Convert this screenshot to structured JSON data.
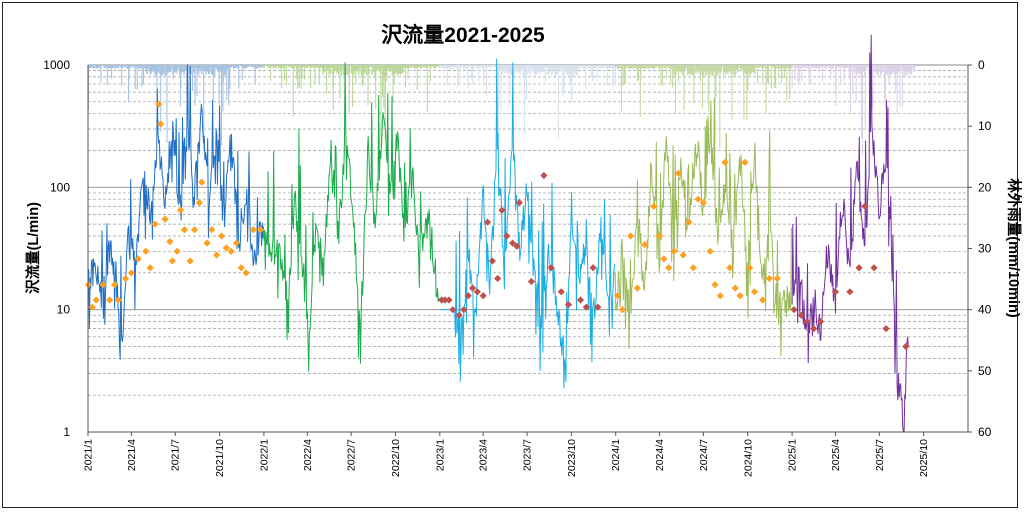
{
  "chart_data": {
    "type": "line",
    "title": "沢流量2021-2025",
    "ylabel_left": "沢流量(L/min)",
    "ylabel_right": "林外雨量(mm/10min)",
    "y_scale": "log",
    "ylim_left": [
      1,
      1000
    ],
    "ylim_right_inverted": [
      0,
      60
    ],
    "x_range": [
      "2021-01-01",
      "2025-12-31"
    ],
    "left_ticks": [
      "1",
      "10",
      "100",
      "1000"
    ],
    "right_ticks": [
      "0",
      "10",
      "20",
      "30",
      "40",
      "50",
      "60"
    ],
    "x_ticks": [
      "2021/1",
      "2021/4",
      "2021/7",
      "2021/10",
      "2022/1",
      "2022/4",
      "2022/7",
      "2022/10",
      "2023/1",
      "2023/4",
      "2023/7",
      "2023/10",
      "2024/1",
      "2024/4",
      "2024/7",
      "2024/10",
      "2025/1",
      "2025/4",
      "2025/7",
      "2025/10"
    ],
    "grid": true,
    "legend": "none",
    "series": [
      {
        "year": 2021,
        "color": "#1f6fc5",
        "rain_color": "#a8c2e2",
        "marker_color": "#ffa020",
        "marker": "diamond",
        "flow": [
          [
            "2021-01-01",
            15
          ],
          [
            "2021-01-15",
            22
          ],
          [
            "2021-01-30",
            12
          ],
          [
            "2021-02-15",
            30
          ],
          [
            "2021-03-01",
            18
          ],
          [
            "2021-03-10",
            4
          ],
          [
            "2021-03-25",
            40
          ],
          [
            "2021-04-10",
            25
          ],
          [
            "2021-04-25",
            130
          ],
          [
            "2021-05-10",
            60
          ],
          [
            "2021-05-25",
            250
          ],
          [
            "2021-06-10",
            80
          ],
          [
            "2021-06-25",
            310
          ],
          [
            "2021-07-10",
            60
          ],
          [
            "2021-07-25",
            350
          ],
          [
            "2021-08-10",
            90
          ],
          [
            "2021-08-25",
            420
          ],
          [
            "2021-09-10",
            70
          ],
          [
            "2021-09-25",
            300
          ],
          [
            "2021-10-10",
            50
          ],
          [
            "2021-10-25",
            260
          ],
          [
            "2021-11-10",
            35
          ],
          [
            "2021-11-25",
            100
          ],
          [
            "2021-12-10",
            25
          ],
          [
            "2021-12-31",
            48
          ]
        ],
        "manual": [
          [
            "2021-01-02",
            16
          ],
          [
            "2021-01-10",
            10.5
          ],
          [
            "2021-01-18",
            12
          ],
          [
            "2021-02-01",
            16
          ],
          [
            "2021-02-15",
            12
          ],
          [
            "2021-02-25",
            16
          ],
          [
            "2021-03-05",
            12
          ],
          [
            "2021-03-20",
            18
          ],
          [
            "2021-04-01",
            20
          ],
          [
            "2021-04-15",
            26
          ],
          [
            "2021-05-01",
            30
          ],
          [
            "2021-05-10",
            22
          ],
          [
            "2021-05-20",
            50
          ],
          [
            "2021-05-28",
            480
          ],
          [
            "2021-06-01",
            330
          ],
          [
            "2021-06-10",
            55
          ],
          [
            "2021-06-20",
            36
          ],
          [
            "2021-06-25",
            25
          ],
          [
            "2021-07-05",
            30
          ],
          [
            "2021-07-12",
            65
          ],
          [
            "2021-07-20",
            45
          ],
          [
            "2021-08-01",
            25
          ],
          [
            "2021-08-10",
            45
          ],
          [
            "2021-08-20",
            75
          ],
          [
            "2021-08-25",
            110
          ],
          [
            "2021-09-05",
            35
          ],
          [
            "2021-09-15",
            45
          ],
          [
            "2021-09-25",
            28
          ],
          [
            "2021-10-05",
            40
          ],
          [
            "2021-10-15",
            32
          ],
          [
            "2021-10-25",
            30
          ],
          [
            "2021-11-05",
            35
          ],
          [
            "2021-11-15",
            22
          ],
          [
            "2021-11-25",
            20
          ],
          [
            "2021-12-10",
            45
          ],
          [
            "2021-12-25",
            45
          ]
        ]
      },
      {
        "year": 2022,
        "color": "#1aab4a",
        "rain_color": "#bcd79a",
        "marker_color": "#1aab4a",
        "marker": "none",
        "flow": [
          [
            "2022-01-01",
            40
          ],
          [
            "2022-01-20",
            30
          ],
          [
            "2022-02-05",
            28
          ],
          [
            "2022-02-20",
            12
          ],
          [
            "2022-03-05",
            80
          ],
          [
            "2022-03-20",
            30
          ],
          [
            "2022-04-05",
            6
          ],
          [
            "2022-04-20",
            60
          ],
          [
            "2022-05-05",
            20
          ],
          [
            "2022-05-20",
            200
          ],
          [
            "2022-06-05",
            40
          ],
          [
            "2022-06-20",
            300
          ],
          [
            "2022-07-05",
            60
          ],
          [
            "2022-07-20",
            6
          ],
          [
            "2022-08-05",
            200
          ],
          [
            "2022-08-20",
            50
          ],
          [
            "2022-09-05",
            400
          ],
          [
            "2022-09-20",
            80
          ],
          [
            "2022-10-05",
            250
          ],
          [
            "2022-10-20",
            40
          ],
          [
            "2022-11-05",
            120
          ],
          [
            "2022-11-20",
            30
          ],
          [
            "2022-12-10",
            60
          ],
          [
            "2022-12-31",
            10
          ]
        ],
        "manual": []
      },
      {
        "year": 2023,
        "color": "#1aaee5",
        "rain_color": "#d8e2ef",
        "marker_color": "#c0504d",
        "marker": "diamond",
        "flow": [
          [
            "2023-02-01",
            10
          ],
          [
            "2023-02-15",
            6
          ],
          [
            "2023-03-01",
            30
          ],
          [
            "2023-03-15",
            8
          ],
          [
            "2023-04-01",
            80
          ],
          [
            "2023-04-15",
            15
          ],
          [
            "2023-05-01",
            250
          ],
          [
            "2023-05-15",
            20
          ],
          [
            "2023-06-01",
            300
          ],
          [
            "2023-06-15",
            30
          ],
          [
            "2023-07-01",
            90
          ],
          [
            "2023-07-15",
            20
          ],
          [
            "2023-07-30",
            8
          ],
          [
            "2023-08-15",
            30
          ],
          [
            "2023-09-01",
            12
          ],
          [
            "2023-09-20",
            3
          ],
          [
            "2023-10-01",
            70
          ],
          [
            "2023-10-15",
            15
          ],
          [
            "2023-11-01",
            40
          ],
          [
            "2023-11-15",
            8
          ],
          [
            "2023-12-01",
            45
          ],
          [
            "2023-12-20",
            12
          ],
          [
            "2023-12-31",
            20
          ]
        ],
        "manual": [
          [
            "2023-01-05",
            12
          ],
          [
            "2023-01-12",
            12
          ],
          [
            "2023-01-20",
            12
          ],
          [
            "2023-01-28",
            10
          ],
          [
            "2023-02-10",
            9
          ],
          [
            "2023-02-20",
            10
          ],
          [
            "2023-03-01",
            13
          ],
          [
            "2023-03-10",
            15
          ],
          [
            "2023-03-20",
            14
          ],
          [
            "2023-04-01",
            13
          ],
          [
            "2023-04-10",
            52
          ],
          [
            "2023-04-20",
            25
          ],
          [
            "2023-05-01",
            18
          ],
          [
            "2023-05-10",
            65
          ],
          [
            "2023-05-20",
            40
          ],
          [
            "2023-06-01",
            35
          ],
          [
            "2023-06-10",
            33
          ],
          [
            "2023-06-15",
            75
          ],
          [
            "2023-07-10",
            17
          ],
          [
            "2023-08-05",
            125
          ],
          [
            "2023-08-20",
            22
          ],
          [
            "2023-09-10",
            14
          ],
          [
            "2023-09-25",
            11
          ],
          [
            "2023-10-20",
            12
          ],
          [
            "2023-11-01",
            10.5
          ],
          [
            "2023-11-15",
            22
          ],
          [
            "2023-11-25",
            10.5
          ]
        ]
      },
      {
        "year": 2024,
        "color": "#9bbb59",
        "rain_color": "#c4d9a4",
        "marker_color": "#ffa020",
        "marker": "diamond",
        "flow": [
          [
            "2024-01-01",
            10
          ],
          [
            "2024-01-15",
            30
          ],
          [
            "2024-02-01",
            7
          ],
          [
            "2024-02-15",
            90
          ],
          [
            "2024-03-01",
            12
          ],
          [
            "2024-03-15",
            160
          ],
          [
            "2024-04-01",
            25
          ],
          [
            "2024-04-15",
            250
          ],
          [
            "2024-05-01",
            30
          ],
          [
            "2024-05-15",
            180
          ],
          [
            "2024-06-01",
            40
          ],
          [
            "2024-06-15",
            300
          ],
          [
            "2024-07-01",
            60
          ],
          [
            "2024-07-15",
            250
          ],
          [
            "2024-08-01",
            40
          ],
          [
            "2024-08-15",
            100
          ],
          [
            "2024-09-01",
            30
          ],
          [
            "2024-09-15",
            180
          ],
          [
            "2024-10-01",
            20
          ],
          [
            "2024-10-15",
            200
          ],
          [
            "2024-11-01",
            15
          ],
          [
            "2024-11-15",
            60
          ],
          [
            "2024-12-01",
            10
          ],
          [
            "2024-12-31",
            12
          ]
        ],
        "manual": [
          [
            "2024-01-05",
            13
          ],
          [
            "2024-01-15",
            10
          ],
          [
            "2024-02-01",
            40
          ],
          [
            "2024-02-15",
            15
          ],
          [
            "2024-03-01",
            34
          ],
          [
            "2024-03-20",
            70
          ],
          [
            "2024-04-01",
            40
          ],
          [
            "2024-04-10",
            26
          ],
          [
            "2024-04-20",
            22
          ],
          [
            "2024-05-01",
            30
          ],
          [
            "2024-05-10",
            130
          ],
          [
            "2024-05-20",
            28
          ],
          [
            "2024-06-01",
            52
          ],
          [
            "2024-06-10",
            22
          ],
          [
            "2024-06-20",
            80
          ],
          [
            "2024-07-01",
            75
          ],
          [
            "2024-07-15",
            30
          ],
          [
            "2024-07-25",
            16
          ],
          [
            "2024-08-05",
            13
          ],
          [
            "2024-08-15",
            160
          ],
          [
            "2024-08-25",
            22
          ],
          [
            "2024-09-05",
            15
          ],
          [
            "2024-09-15",
            13
          ],
          [
            "2024-09-25",
            160
          ],
          [
            "2024-10-05",
            22
          ],
          [
            "2024-10-15",
            14
          ],
          [
            "2024-11-01",
            12
          ],
          [
            "2024-11-15",
            18
          ],
          [
            "2024-12-01",
            18
          ]
        ]
      },
      {
        "year": 2025,
        "color": "#7030a0",
        "rain_color": "#dcd3e8",
        "marker_color": "#c0504d",
        "marker": "diamond",
        "flow": [
          [
            "2025-01-01",
            12
          ],
          [
            "2025-01-15",
            20
          ],
          [
            "2025-02-01",
            6
          ],
          [
            "2025-02-15",
            15
          ],
          [
            "2025-03-01",
            6
          ],
          [
            "2025-03-15",
            30
          ],
          [
            "2025-04-01",
            10
          ],
          [
            "2025-04-15",
            80
          ],
          [
            "2025-05-01",
            20
          ],
          [
            "2025-05-15",
            150
          ],
          [
            "2025-06-01",
            30
          ],
          [
            "2025-06-15",
            350
          ],
          [
            "2025-07-01",
            60
          ],
          [
            "2025-07-15",
            200
          ],
          [
            "2025-08-01",
            10
          ],
          [
            "2025-08-10",
            3
          ],
          [
            "2025-08-20",
            1.1
          ],
          [
            "2025-08-31",
            8
          ]
        ],
        "manual": [
          [
            "2025-01-05",
            10
          ],
          [
            "2025-01-20",
            9
          ],
          [
            "2025-02-01",
            8
          ],
          [
            "2025-02-15",
            7
          ],
          [
            "2025-03-01",
            8
          ],
          [
            "2025-04-01",
            14
          ],
          [
            "2025-05-01",
            14
          ],
          [
            "2025-05-20",
            22
          ],
          [
            "2025-06-01",
            70
          ],
          [
            "2025-06-20",
            22
          ],
          [
            "2025-07-15",
            7
          ],
          [
            "2025-08-25",
            5
          ]
        ]
      }
    ]
  }
}
